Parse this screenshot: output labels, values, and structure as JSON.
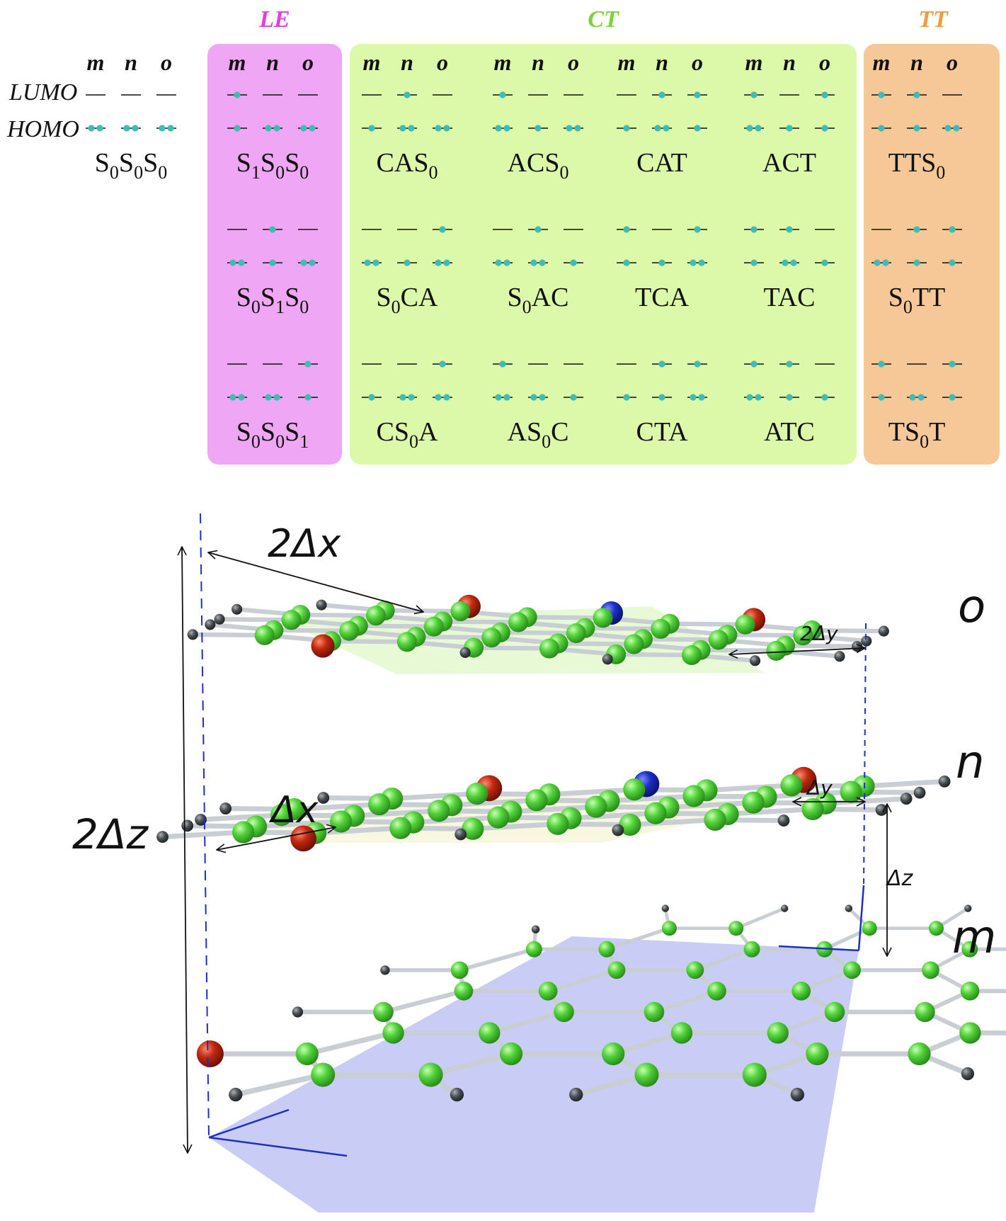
{
  "groups": {
    "le": {
      "label": "LE",
      "color": "#e040e0",
      "bg": "#efa6f5"
    },
    "ct": {
      "label": "CT",
      "color": "#7fd13a",
      "bg": "#dbf9a8"
    },
    "tt": {
      "label": "TT",
      "color": "#f29b3a",
      "bg": "#f6c898"
    }
  },
  "row_labels": {
    "lumo": "LUMO",
    "homo": "HOMO"
  },
  "molecule_letters": [
    "m",
    "n",
    "o"
  ],
  "states": [
    {
      "id": "S0S0S0",
      "label": [
        [
          "S",
          ""
        ],
        [
          "0",
          "sub"
        ],
        [
          "S",
          ""
        ],
        [
          "0",
          "sub"
        ],
        [
          "S",
          ""
        ],
        [
          "0",
          "sub"
        ]
      ],
      "lumo": [
        0,
        0,
        0
      ],
      "homo": [
        2,
        2,
        2
      ]
    },
    {
      "id": "S1S0S0",
      "label": [
        [
          "S",
          ""
        ],
        [
          "1",
          "sub"
        ],
        [
          "S",
          ""
        ],
        [
          "0",
          "sub"
        ],
        [
          "S",
          ""
        ],
        [
          "0",
          "sub"
        ]
      ],
      "lumo": [
        1,
        0,
        0
      ],
      "homo": [
        1,
        2,
        2
      ]
    },
    {
      "id": "S0S1S0",
      "label": [
        [
          "S",
          ""
        ],
        [
          "0",
          "sub"
        ],
        [
          "S",
          ""
        ],
        [
          "1",
          "sub"
        ],
        [
          "S",
          ""
        ],
        [
          "0",
          "sub"
        ]
      ],
      "lumo": [
        0,
        1,
        0
      ],
      "homo": [
        2,
        1,
        2
      ]
    },
    {
      "id": "S0S0S1",
      "label": [
        [
          "S",
          ""
        ],
        [
          "0",
          "sub"
        ],
        [
          "S",
          ""
        ],
        [
          "0",
          "sub"
        ],
        [
          "S",
          ""
        ],
        [
          "1",
          "sub"
        ]
      ],
      "lumo": [
        0,
        0,
        1
      ],
      "homo": [
        2,
        2,
        1
      ]
    },
    {
      "id": "CAS0",
      "label": [
        [
          "CAS",
          ""
        ],
        [
          "0",
          "sub"
        ]
      ],
      "lumo": [
        0,
        1,
        0
      ],
      "homo": [
        1,
        2,
        2
      ]
    },
    {
      "id": "ACS0",
      "label": [
        [
          "ACS",
          ""
        ],
        [
          "0",
          "sub"
        ]
      ],
      "lumo": [
        1,
        0,
        0
      ],
      "homo": [
        2,
        1,
        2
      ]
    },
    {
      "id": "CAT",
      "label": [
        [
          "CAT",
          ""
        ]
      ],
      "lumo": [
        0,
        1,
        1
      ],
      "homo": [
        1,
        2,
        1
      ]
    },
    {
      "id": "ACT",
      "label": [
        [
          "ACT",
          ""
        ]
      ],
      "lumo": [
        1,
        0,
        1
      ],
      "homo": [
        2,
        1,
        1
      ]
    },
    {
      "id": "S0CA",
      "label": [
        [
          "S",
          ""
        ],
        [
          "0",
          "sub"
        ],
        [
          "CA",
          ""
        ]
      ],
      "lumo": [
        0,
        0,
        1
      ],
      "homo": [
        2,
        1,
        2
      ]
    },
    {
      "id": "S0AC",
      "label": [
        [
          "S",
          ""
        ],
        [
          "0",
          "sub"
        ],
        [
          "AC",
          ""
        ]
      ],
      "lumo": [
        0,
        1,
        0
      ],
      "homo": [
        2,
        2,
        1
      ]
    },
    {
      "id": "TCA",
      "label": [
        [
          "TCA",
          ""
        ]
      ],
      "lumo": [
        1,
        0,
        1
      ],
      "homo": [
        1,
        1,
        2
      ]
    },
    {
      "id": "TAC",
      "label": [
        [
          "TAC",
          ""
        ]
      ],
      "lumo": [
        1,
        1,
        0
      ],
      "homo": [
        1,
        2,
        1
      ]
    },
    {
      "id": "CS0A",
      "label": [
        [
          "CS",
          ""
        ],
        [
          "0",
          "sub"
        ],
        [
          "A",
          ""
        ]
      ],
      "lumo": [
        0,
        0,
        1
      ],
      "homo": [
        1,
        2,
        2
      ]
    },
    {
      "id": "AS0C",
      "label": [
        [
          "AS",
          ""
        ],
        [
          "0",
          "sub"
        ],
        [
          "C",
          ""
        ]
      ],
      "lumo": [
        1,
        0,
        0
      ],
      "homo": [
        2,
        2,
        1
      ]
    },
    {
      "id": "CTA",
      "label": [
        [
          "CTA",
          ""
        ]
      ],
      "lumo": [
        0,
        1,
        1
      ],
      "homo": [
        1,
        1,
        2
      ]
    },
    {
      "id": "ATC",
      "label": [
        [
          "ATC",
          ""
        ]
      ],
      "lumo": [
        1,
        1,
        0
      ],
      "homo": [
        2,
        1,
        1
      ]
    },
    {
      "id": "TTS0",
      "label": [
        [
          "TTS",
          ""
        ],
        [
          "0",
          "sub"
        ]
      ],
      "lumo": [
        1,
        1,
        0
      ],
      "homo": [
        1,
        1,
        2
      ]
    },
    {
      "id": "S0TT",
      "label": [
        [
          "S",
          ""
        ],
        [
          "0",
          "sub"
        ],
        [
          "TT",
          ""
        ]
      ],
      "lumo": [
        0,
        1,
        1
      ],
      "homo": [
        2,
        1,
        1
      ]
    },
    {
      "id": "TS0T",
      "label": [
        [
          "TS",
          ""
        ],
        [
          "0",
          "sub"
        ],
        [
          "T",
          ""
        ]
      ],
      "lumo": [
        1,
        0,
        1
      ],
      "homo": [
        1,
        2,
        1
      ]
    }
  ],
  "dimensions": {
    "two_dx": "2Δx",
    "dx": "Δx",
    "two_dy": "2Δy",
    "dy": "Δy",
    "two_dz": "2Δz",
    "dz": "Δz"
  },
  "layer_labels": {
    "o": "o",
    "n": "n",
    "m": "m"
  },
  "colors": {
    "electron": "#3fbcb3",
    "carbon": "#52d33a",
    "nitrogen": "#1a2fc8",
    "oxygen": "#c1280f",
    "hydrogen": "#4a4f52",
    "bond": "#c9ced4",
    "plane_m": "#c3c6f3",
    "plane_o": "#e4f8cf",
    "guide": "#1e2fc8"
  }
}
